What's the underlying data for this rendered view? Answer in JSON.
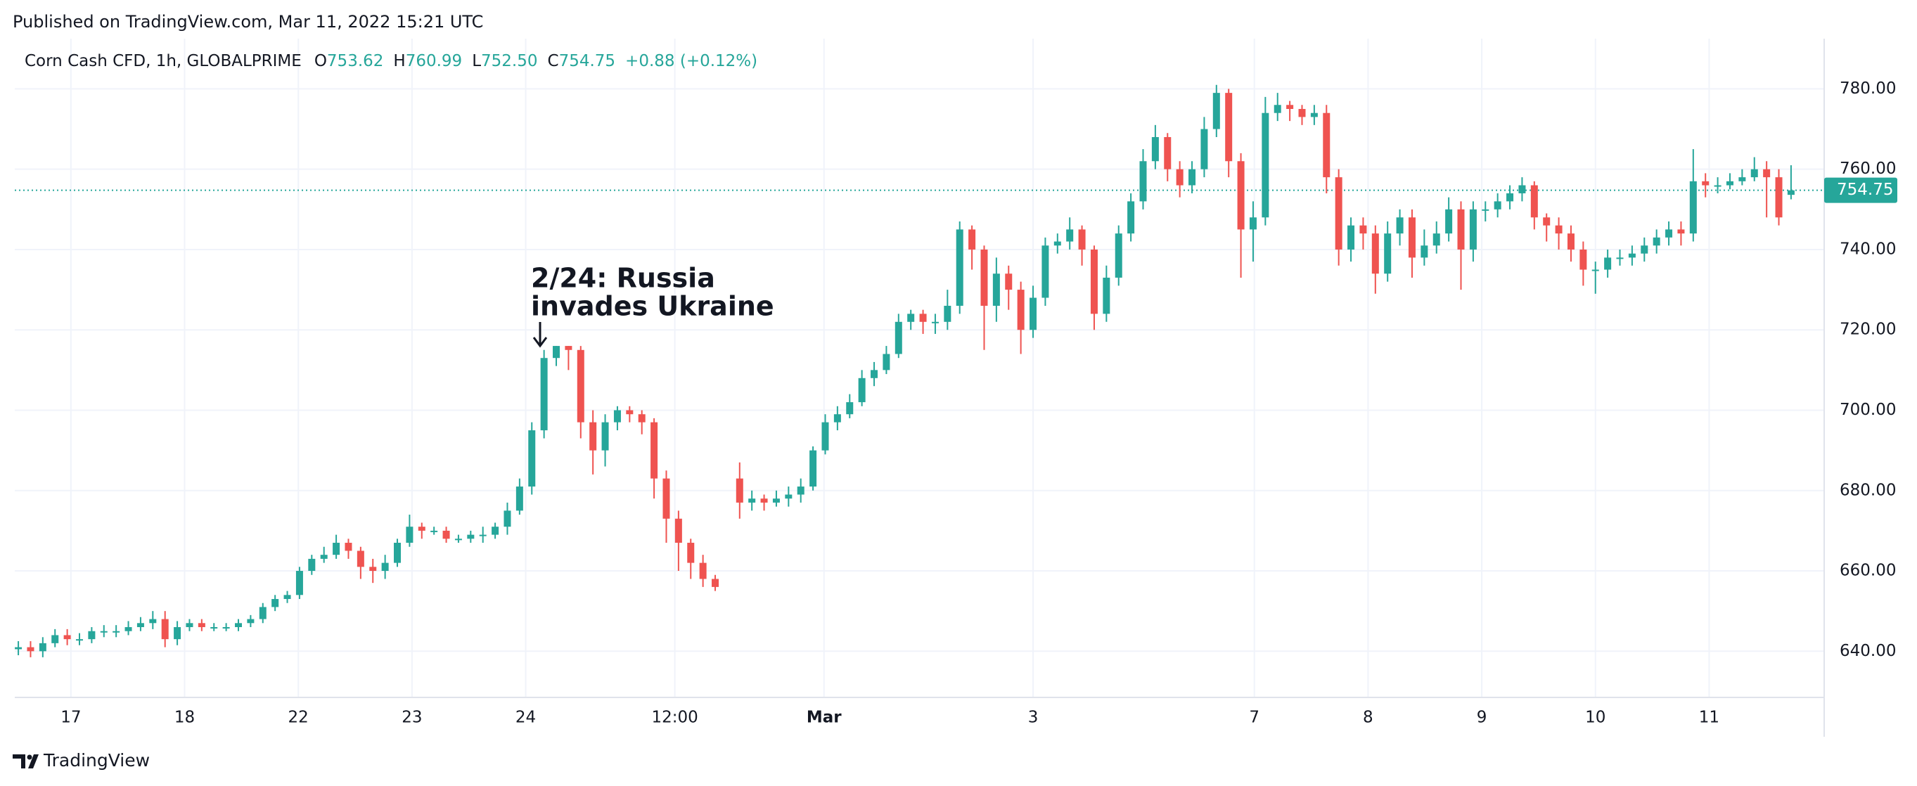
{
  "published": "Published on TradingView.com, Mar 11, 2022 15:21 UTC",
  "footer": "TradingView",
  "header": {
    "symbol": "Corn Cash CFD, 1h, GLOBALPRIME",
    "o": "O",
    "open": "753.62",
    "h": "H",
    "high": "760.99",
    "l": "L",
    "low": "752.50",
    "c": "C",
    "close": "754.75",
    "change": "+0.88 (+0.12%)"
  },
  "chart_data": {
    "type": "candlestick",
    "annotation": [
      "2/24: Russia",
      "invades Ukraine"
    ],
    "up_color": "#26a69a",
    "down_color": "#ef5350",
    "grid": true,
    "ylim": [
      628.5,
      792.5
    ],
    "yticks": [
      {
        "value": 640,
        "label": "640.00"
      },
      {
        "value": 660,
        "label": "660.00"
      },
      {
        "value": 680,
        "label": "680.00"
      },
      {
        "value": 700,
        "label": "700.00"
      },
      {
        "value": 720,
        "label": "720.00"
      },
      {
        "value": 740,
        "label": "740.00"
      },
      {
        "value": 760,
        "label": "760.00"
      },
      {
        "value": 780,
        "label": "780.00"
      }
    ],
    "xticks": [
      {
        "value": 4.3,
        "label": "17"
      },
      {
        "value": 13.6,
        "label": "18"
      },
      {
        "value": 22.9,
        "label": "22"
      },
      {
        "value": 32.2,
        "label": "23"
      },
      {
        "value": 41.5,
        "label": "24"
      },
      {
        "value": 53.7,
        "label": "12:00"
      },
      {
        "value": 65.9,
        "label": "Mar"
      },
      {
        "value": 83,
        "label": "3"
      },
      {
        "value": 101.1,
        "label": "7"
      },
      {
        "value": 110.4,
        "label": "8"
      },
      {
        "value": 119.7,
        "label": "9"
      },
      {
        "value": 129,
        "label": "10"
      },
      {
        "value": 138.3,
        "label": "11"
      }
    ],
    "last_price": {
      "value": 754.75,
      "label": "754.75"
    },
    "candles": {
      "open": [
        640.5,
        641,
        640,
        642,
        644,
        643,
        643,
        645,
        645,
        645,
        646,
        647,
        648,
        643,
        646,
        647,
        646,
        646,
        646,
        647,
        648,
        651,
        653,
        654,
        660,
        663,
        664,
        667,
        665,
        661,
        660,
        662,
        667,
        671,
        670,
        670,
        668,
        668,
        669,
        669,
        671,
        675,
        681,
        695,
        713,
        716,
        715,
        697,
        690,
        697,
        700,
        699,
        697,
        683,
        673,
        667,
        662,
        658,
        null,
        683,
        677,
        678,
        677,
        678,
        679,
        681,
        690,
        697,
        699,
        702,
        708,
        710,
        714,
        722,
        724,
        722,
        722,
        726,
        745,
        740,
        726,
        734,
        730,
        720,
        728,
        741,
        742,
        745,
        740,
        724,
        733,
        744,
        752,
        762,
        768,
        760,
        756,
        760,
        770,
        779,
        762,
        745,
        748,
        774,
        776,
        775,
        773,
        774,
        758,
        740,
        746,
        744,
        734,
        744,
        748,
        738,
        741,
        744,
        750,
        740,
        750,
        750,
        752,
        754,
        756,
        748,
        746,
        744,
        740,
        735,
        735,
        738,
        738,
        739,
        741,
        743,
        745,
        744,
        757,
        756,
        756,
        757,
        758,
        760,
        758,
        753.62
      ],
      "high": [
        642.5,
        642.5,
        643.5,
        645.5,
        645.5,
        644.5,
        646,
        646.5,
        646.5,
        647.5,
        648.5,
        650,
        650,
        647.5,
        648,
        648,
        647,
        647,
        648,
        649,
        652,
        654,
        655,
        661,
        664,
        666,
        669,
        668,
        666,
        663,
        664,
        668,
        674,
        672,
        671,
        671,
        669,
        670,
        671,
        672,
        677,
        683,
        697,
        715,
        716,
        716,
        716,
        700,
        699,
        701,
        701,
        700,
        698,
        685,
        675,
        668,
        664,
        659,
        null,
        687,
        680,
        679,
        680,
        681,
        683,
        691,
        699,
        701,
        704,
        710,
        712,
        716,
        724,
        725,
        725,
        724,
        730,
        747,
        746,
        741,
        738,
        736,
        732,
        731,
        743,
        744,
        748,
        746,
        741,
        736,
        746,
        754,
        765,
        771,
        769,
        762,
        762,
        773,
        781,
        780,
        764,
        752,
        778,
        779,
        777,
        776,
        776,
        776,
        760,
        748,
        748,
        746,
        747,
        750,
        750,
        745,
        747,
        753,
        752,
        752,
        752,
        754,
        756,
        758,
        757,
        749,
        748,
        746,
        742,
        737,
        740,
        740,
        741,
        743,
        745,
        747,
        747,
        765,
        759,
        758,
        759,
        760,
        763,
        762,
        760,
        760.99
      ],
      "low": [
        639,
        638.5,
        638.5,
        641,
        641.5,
        641.5,
        642,
        643.5,
        643.5,
        644,
        645,
        645.5,
        641,
        641.5,
        645,
        645,
        645,
        645,
        645,
        646,
        647,
        650,
        652,
        653,
        659,
        662,
        663,
        663,
        658,
        657,
        658,
        661,
        666,
        668,
        669,
        667,
        667,
        667,
        667,
        668,
        669,
        674,
        679,
        693,
        711,
        710,
        693,
        684,
        686,
        695,
        697,
        694,
        678,
        667,
        660,
        658,
        656,
        655,
        null,
        673,
        675,
        675,
        676,
        676,
        677,
        680,
        689,
        695,
        698,
        701,
        706,
        709,
        713,
        720,
        719,
        719,
        720,
        724,
        735,
        715,
        722,
        725,
        714,
        718,
        726,
        739,
        740,
        736,
        720,
        722,
        731,
        742,
        750,
        760,
        757,
        753,
        754,
        758,
        768,
        758,
        733,
        737,
        746,
        772,
        772,
        771,
        771,
        754,
        736,
        737,
        740,
        729,
        732,
        741,
        733,
        736,
        739,
        742,
        730,
        737,
        747,
        748,
        750,
        752,
        745,
        742,
        740,
        737,
        731,
        729,
        733,
        736,
        736,
        737,
        739,
        741,
        741,
        742,
        753,
        754,
        755,
        756,
        757,
        748,
        746,
        752.5
      ],
      "close": [
        641,
        640,
        642,
        644,
        643,
        643,
        645,
        645,
        645,
        646,
        647,
        648,
        643,
        646,
        647,
        646,
        646,
        646,
        647,
        648,
        651,
        653,
        654,
        660,
        663,
        664,
        667,
        665,
        661,
        660,
        662,
        667,
        671,
        670,
        670,
        668,
        668,
        669,
        669,
        671,
        675,
        681,
        695,
        713,
        716,
        715,
        697,
        690,
        697,
        700,
        699,
        697,
        683,
        673,
        667,
        662,
        658,
        656,
        null,
        677,
        678,
        677,
        678,
        679,
        681,
        690,
        697,
        699,
        702,
        708,
        710,
        714,
        722,
        724,
        722,
        722,
        726,
        745,
        740,
        726,
        734,
        730,
        720,
        728,
        741,
        742,
        745,
        740,
        724,
        733,
        744,
        752,
        762,
        768,
        760,
        756,
        760,
        770,
        779,
        762,
        745,
        748,
        774,
        776,
        775,
        773,
        774,
        758,
        740,
        746,
        744,
        734,
        744,
        748,
        738,
        741,
        744,
        750,
        740,
        750,
        750,
        752,
        754,
        756,
        748,
        746,
        744,
        740,
        735,
        735,
        738,
        738,
        739,
        741,
        743,
        745,
        744,
        757,
        756,
        756,
        757,
        758,
        760,
        758,
        748,
        754.75
      ]
    }
  }
}
